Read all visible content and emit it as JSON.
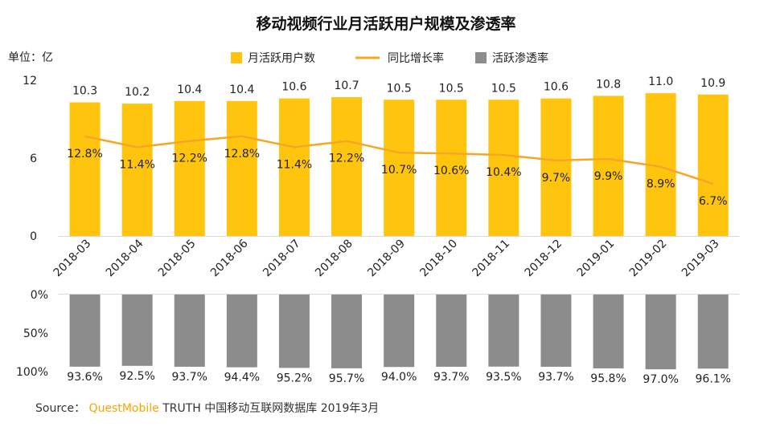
{
  "chart_data": {
    "type": "bar",
    "title": "移动视频行业月活跃用户规模及渗透率",
    "unit_label": "单位：亿",
    "categories": [
      "2018-03",
      "2018-04",
      "2018-05",
      "2018-06",
      "2018-07",
      "2018-08",
      "2018-09",
      "2018-10",
      "2018-11",
      "2018-12",
      "2019-01",
      "2019-02",
      "2019-03"
    ],
    "legend": [
      "月活跃用户数",
      "同比增长率",
      "活跃渗透率"
    ],
    "legend_placement": "top",
    "series": [
      {
        "name": "月活跃用户数",
        "type": "bar",
        "color": "#ffc50e",
        "values": [
          10.3,
          10.2,
          10.4,
          10.4,
          10.6,
          10.7,
          10.5,
          10.5,
          10.5,
          10.6,
          10.8,
          11.0,
          10.9
        ],
        "labels": [
          "10.3",
          "10.2",
          "10.4",
          "10.4",
          "10.6",
          "10.7",
          "10.5",
          "10.5",
          "10.5",
          "10.6",
          "10.8",
          "11.0",
          "10.9"
        ]
      },
      {
        "name": "同比增长率",
        "type": "line",
        "color": "#f5a623",
        "values": [
          12.8,
          11.4,
          12.2,
          12.8,
          11.4,
          12.2,
          10.7,
          10.6,
          10.4,
          9.7,
          9.9,
          8.9,
          6.7
        ],
        "labels": [
          "12.8%",
          "11.4%",
          "12.2%",
          "12.8%",
          "11.4%",
          "12.2%",
          "10.7%",
          "10.6%",
          "10.4%",
          "9.7%",
          "9.9%",
          "8.9%",
          "6.7%"
        ]
      },
      {
        "name": "活跃渗透率",
        "type": "bar",
        "color": "#8c8c8c",
        "values": [
          93.6,
          92.5,
          93.7,
          94.4,
          95.2,
          95.7,
          94.0,
          93.7,
          93.5,
          93.7,
          95.8,
          97.0,
          96.1
        ],
        "labels": [
          "93.6%",
          "92.5%",
          "93.7%",
          "94.4%",
          "95.2%",
          "95.7%",
          "94.0%",
          "93.7%",
          "93.5%",
          "93.7%",
          "95.8%",
          "97.0%",
          "96.1%"
        ]
      }
    ],
    "y_top": {
      "ylim": [
        0,
        12
      ],
      "ticks": [
        "0",
        "6",
        "12"
      ],
      "tick_values": [
        0,
        6,
        12
      ]
    },
    "y_bottom": {
      "ylim": [
        0,
        100
      ],
      "ticks": [
        "0%",
        "50%",
        "100%"
      ],
      "tick_values": [
        0,
        50,
        100
      ],
      "inverted": true
    }
  },
  "source": {
    "prefix": "Source：",
    "brand": "QuestMobile",
    "rest": "TRUTH 中国移动互联网数据库 2019年3月"
  },
  "colors": {
    "bar": "#ffc50e",
    "line": "#f5a623",
    "gray": "#8c8c8c",
    "axis": "#d9d9d9"
  }
}
